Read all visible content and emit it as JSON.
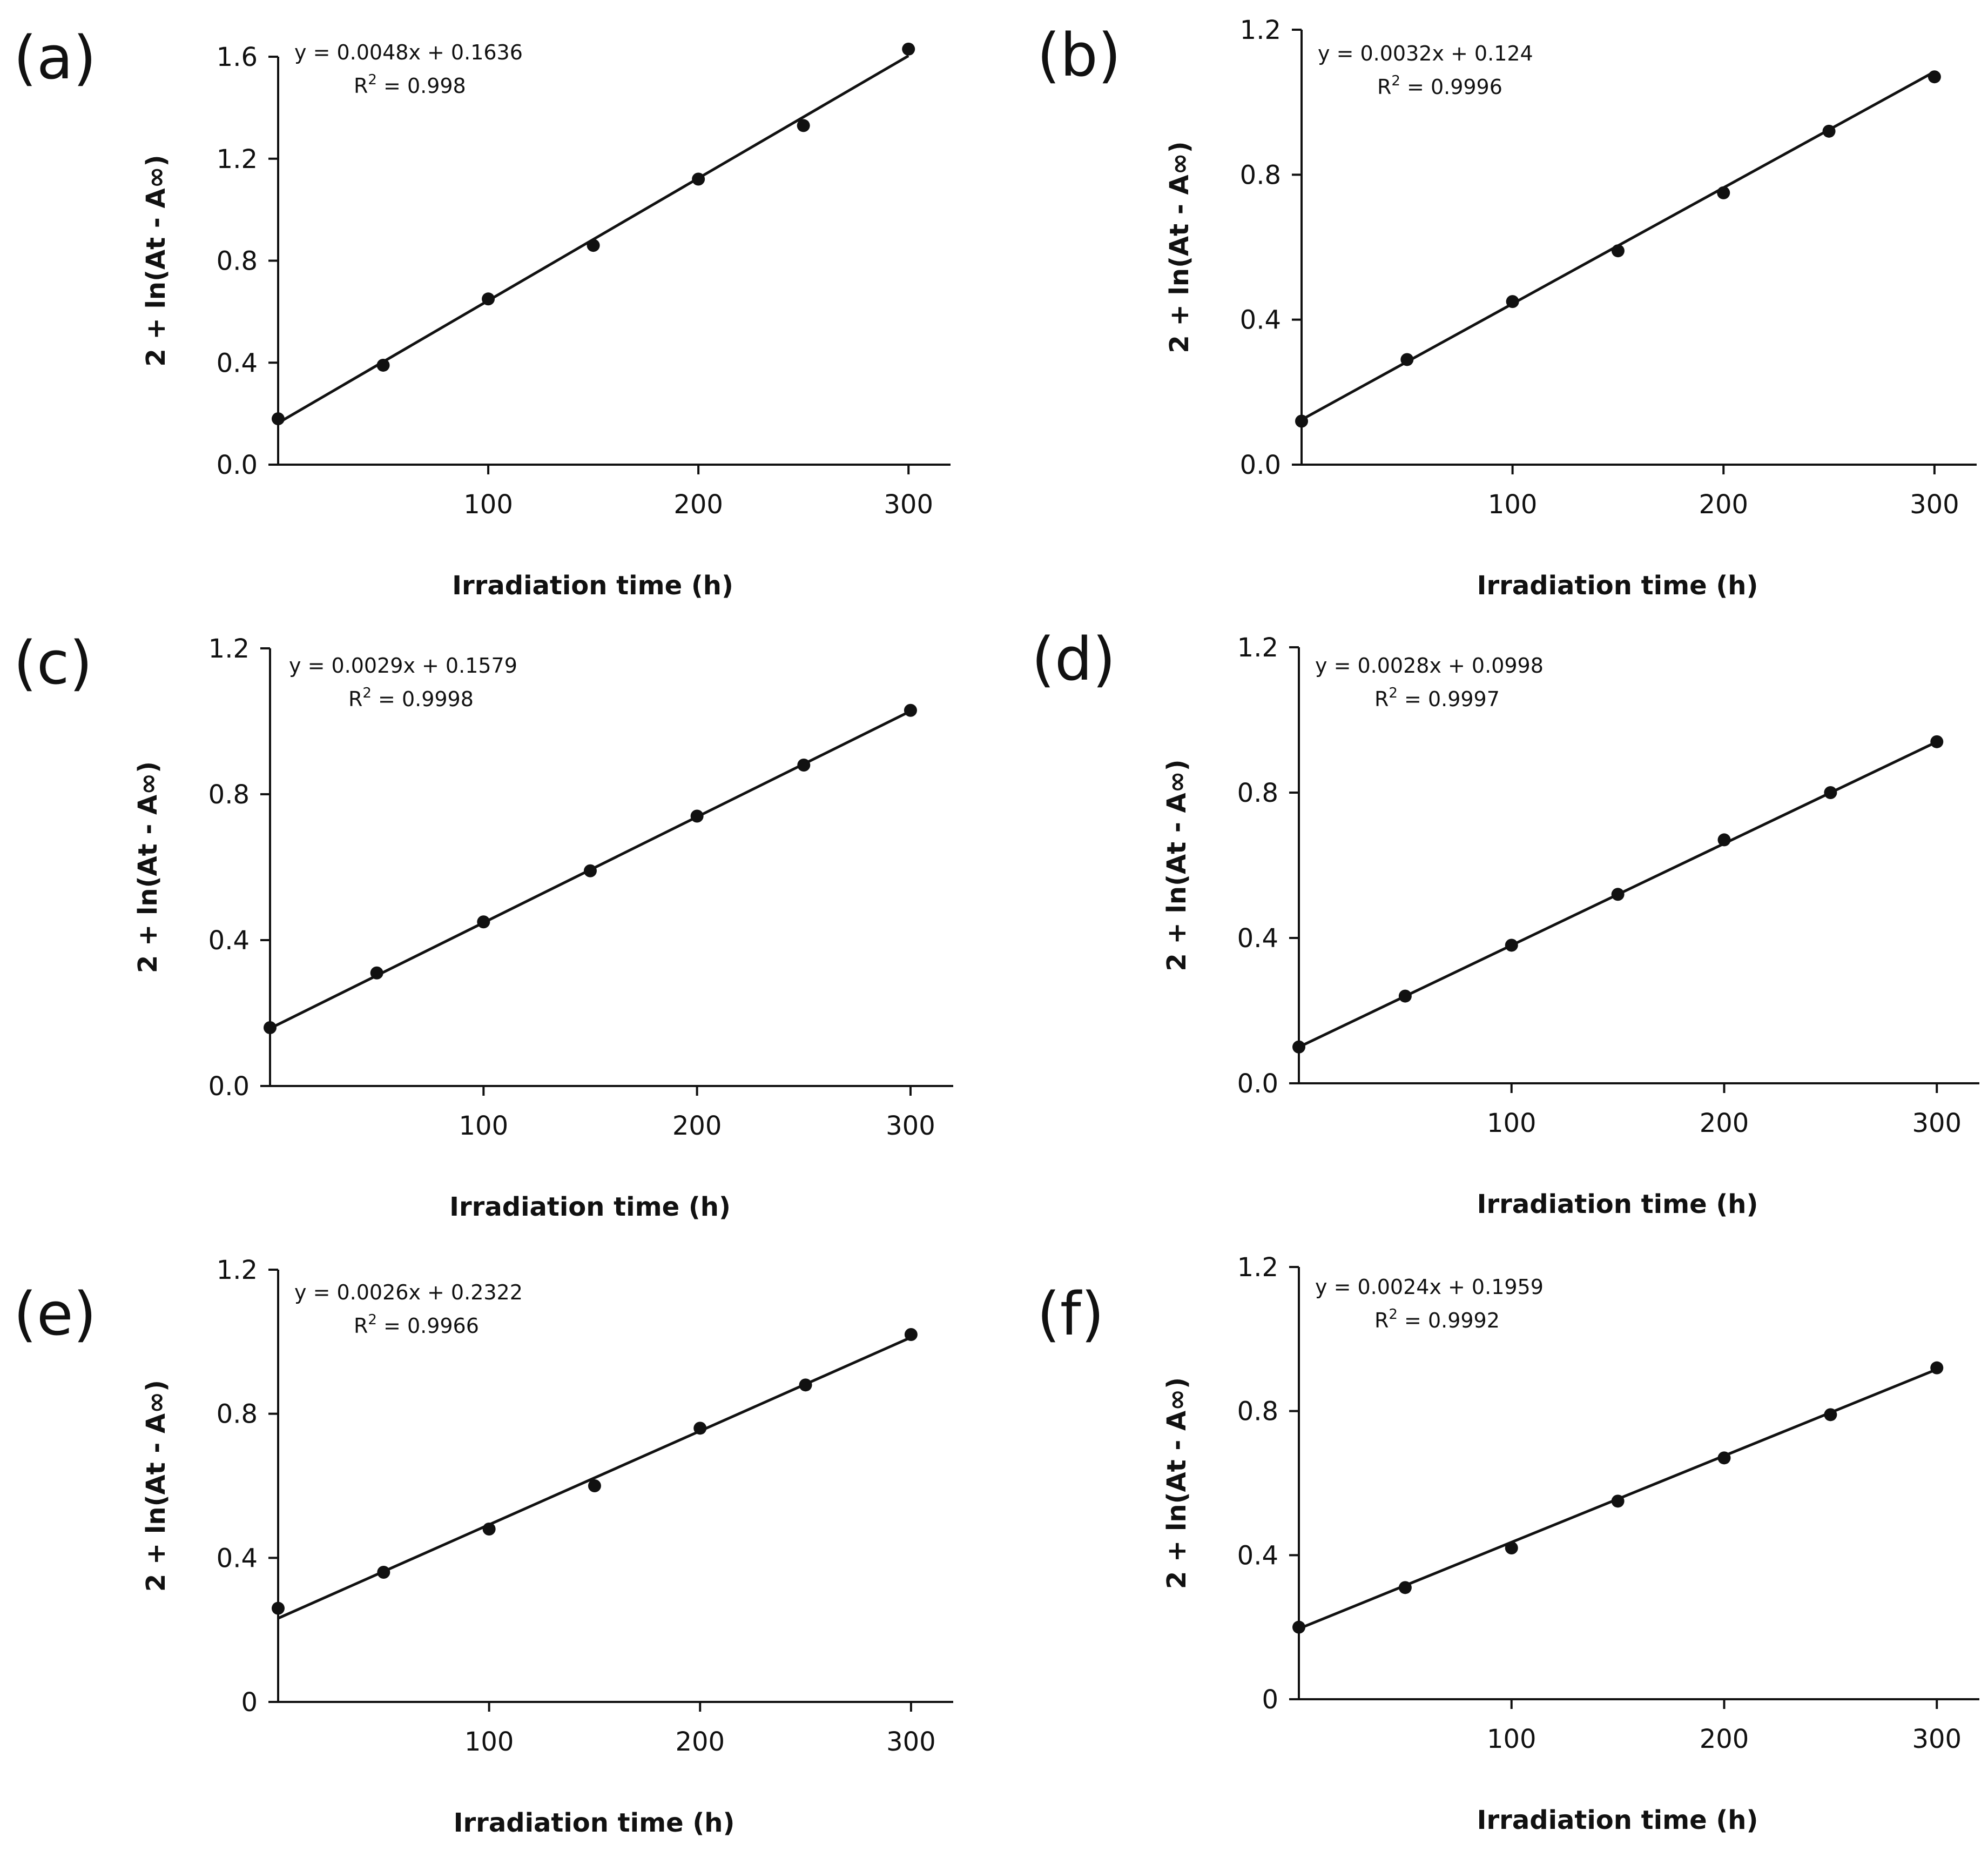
{
  "chart_data": [
    {
      "type": "scatter",
      "panel_label": "(a)",
      "xlabel": "Irradiation time (h)",
      "ylabel": "2 + ln(At - A∞)",
      "xlim": [
        0,
        320
      ],
      "ylim": [
        0,
        1.6
      ],
      "x_ticks": [
        100,
        200,
        300
      ],
      "y_ticks": [
        0.0,
        0.4,
        0.8,
        1.2,
        1.6
      ],
      "y_tick_labels": [
        "0.0",
        "0.4",
        "0.8",
        "1.2",
        "1.6"
      ],
      "equation": "y = 0.0048x + 0.1636",
      "r2_prefix": "R",
      "r2_sup": "2",
      "r2_value": " = 0.998",
      "fit": {
        "slope": 0.0048,
        "intercept": 0.1636
      },
      "series": [
        {
          "x": [
            0,
            50,
            100,
            150,
            200,
            250,
            300
          ],
          "y": [
            0.18,
            0.39,
            0.65,
            0.86,
            1.12,
            1.33,
            1.63
          ]
        }
      ]
    },
    {
      "type": "scatter",
      "panel_label": "(b)",
      "xlabel": "Irradiation time (h)",
      "ylabel": "2 + ln(At - A∞)",
      "xlim": [
        0,
        320
      ],
      "ylim": [
        0,
        1.2
      ],
      "x_ticks": [
        100,
        200,
        300
      ],
      "y_ticks": [
        0.0,
        0.4,
        0.8,
        1.2
      ],
      "y_tick_labels": [
        "0.0",
        "0.4",
        "0.8",
        "1.2"
      ],
      "equation": "y = 0.0032x + 0.124",
      "r2_prefix": "R",
      "r2_sup": "2",
      "r2_value": " = 0.9996",
      "fit": {
        "slope": 0.0032,
        "intercept": 0.124
      },
      "series": [
        {
          "x": [
            0,
            50,
            100,
            150,
            200,
            250,
            300
          ],
          "y": [
            0.12,
            0.29,
            0.45,
            0.59,
            0.75,
            0.92,
            1.07
          ]
        }
      ]
    },
    {
      "type": "scatter",
      "panel_label": "(c)",
      "xlabel": "Irradiation time (h)",
      "ylabel": "2 + ln(At - A∞)",
      "xlim": [
        0,
        320
      ],
      "ylim": [
        0,
        1.2
      ],
      "x_ticks": [
        100,
        200,
        300
      ],
      "y_ticks": [
        0.0,
        0.4,
        0.8,
        1.2
      ],
      "y_tick_labels": [
        "0.0",
        "0.4",
        "0.8",
        "1.2"
      ],
      "equation": "y = 0.0029x + 0.1579",
      "r2_prefix": "R",
      "r2_sup": "2",
      "r2_value": " = 0.9998",
      "fit": {
        "slope": 0.0029,
        "intercept": 0.1579
      },
      "series": [
        {
          "x": [
            0,
            50,
            100,
            150,
            200,
            250,
            300
          ],
          "y": [
            0.16,
            0.31,
            0.45,
            0.59,
            0.74,
            0.88,
            1.03
          ]
        }
      ]
    },
    {
      "type": "scatter",
      "panel_label": "(d)",
      "xlabel": "Irradiation time (h)",
      "ylabel": "2 + ln(At - A∞)",
      "xlim": [
        0,
        320
      ],
      "ylim": [
        0,
        1.2
      ],
      "x_ticks": [
        100,
        200,
        300
      ],
      "y_ticks": [
        0.0,
        0.4,
        0.8,
        1.2
      ],
      "y_tick_labels": [
        "0.0",
        "0.4",
        "0.8",
        "1.2"
      ],
      "equation": "y = 0.0028x + 0.0998",
      "r2_prefix": "R",
      "r2_sup": "2",
      "r2_value": " = 0.9997",
      "fit": {
        "slope": 0.0028,
        "intercept": 0.0998
      },
      "series": [
        {
          "x": [
            0,
            50,
            100,
            150,
            200,
            250,
            300
          ],
          "y": [
            0.1,
            0.24,
            0.38,
            0.52,
            0.67,
            0.8,
            0.94
          ]
        }
      ]
    },
    {
      "type": "scatter",
      "panel_label": "(e)",
      "xlabel": "Irradiation time (h)",
      "ylabel": "2 + ln(At - A∞)",
      "xlim": [
        0,
        320
      ],
      "ylim": [
        0,
        1.2
      ],
      "x_ticks": [
        100,
        200,
        300
      ],
      "y_ticks": [
        0,
        0.4,
        0.8,
        1.2
      ],
      "y_tick_labels": [
        "0",
        "0.4",
        "0.8",
        "1.2"
      ],
      "equation": "y = 0.0026x + 0.2322",
      "r2_prefix": "R",
      "r2_sup": "2",
      "r2_value": " = 0.9966",
      "fit": {
        "slope": 0.0026,
        "intercept": 0.2322
      },
      "series": [
        {
          "x": [
            0,
            50,
            100,
            150,
            200,
            250,
            300
          ],
          "y": [
            0.26,
            0.36,
            0.48,
            0.6,
            0.76,
            0.88,
            1.02
          ]
        }
      ]
    },
    {
      "type": "scatter",
      "panel_label": "(f)",
      "xlabel": "Irradiation time (h)",
      "ylabel": "2 + ln(At - A∞)",
      "xlim": [
        0,
        320
      ],
      "ylim": [
        0,
        1.2
      ],
      "x_ticks": [
        100,
        200,
        300
      ],
      "y_ticks": [
        0,
        0.4,
        0.8,
        1.2
      ],
      "y_tick_labels": [
        "0",
        "0.4",
        "0.8",
        "1.2"
      ],
      "equation": "y = 0.0024x + 0.1959",
      "r2_prefix": "R",
      "r2_sup": "2",
      "r2_value": " = 0.9992",
      "fit": {
        "slope": 0.0024,
        "intercept": 0.1959
      },
      "series": [
        {
          "x": [
            0,
            50,
            100,
            150,
            200,
            250,
            300
          ],
          "y": [
            0.2,
            0.31,
            0.42,
            0.55,
            0.67,
            0.79,
            0.92
          ]
        }
      ]
    }
  ]
}
